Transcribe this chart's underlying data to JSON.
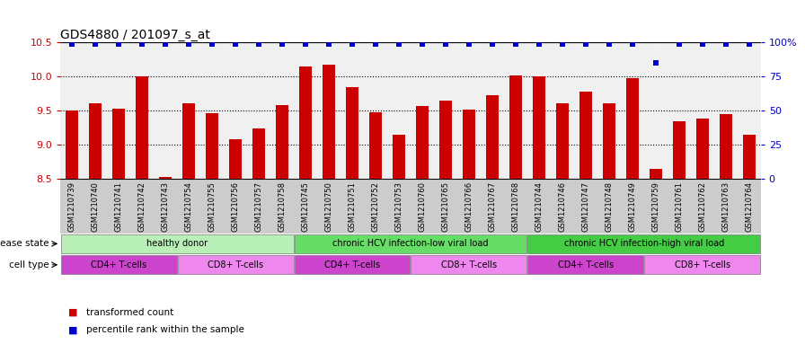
{
  "title": "GDS4880 / 201097_s_at",
  "samples": [
    "GSM1210739",
    "GSM1210740",
    "GSM1210741",
    "GSM1210742",
    "GSM1210743",
    "GSM1210754",
    "GSM1210755",
    "GSM1210756",
    "GSM1210757",
    "GSM1210758",
    "GSM1210745",
    "GSM1210750",
    "GSM1210751",
    "GSM1210752",
    "GSM1210753",
    "GSM1210760",
    "GSM1210765",
    "GSM1210766",
    "GSM1210767",
    "GSM1210768",
    "GSM1210744",
    "GSM1210746",
    "GSM1210747",
    "GSM1210748",
    "GSM1210749",
    "GSM1210759",
    "GSM1210761",
    "GSM1210762",
    "GSM1210763",
    "GSM1210764"
  ],
  "values": [
    9.5,
    9.6,
    9.53,
    10.0,
    8.53,
    9.6,
    9.46,
    9.08,
    9.24,
    9.58,
    10.15,
    10.17,
    9.84,
    9.47,
    9.15,
    9.56,
    9.65,
    9.52,
    9.73,
    10.02,
    10.0,
    9.6,
    9.78,
    9.6,
    9.98,
    8.65,
    9.34,
    9.38,
    9.45,
    9.15
  ],
  "percentile_ranks": [
    99,
    99,
    99,
    99,
    99,
    99,
    99,
    99,
    99,
    99,
    99,
    99,
    99,
    99,
    99,
    99,
    99,
    99,
    99,
    99,
    99,
    99,
    99,
    99,
    99,
    85,
    99,
    99,
    99,
    99
  ],
  "bar_color": "#cc0000",
  "dot_color": "#0000cc",
  "ylim": [
    8.5,
    10.5
  ],
  "y2lim": [
    0,
    100
  ],
  "yticks": [
    8.5,
    9.0,
    9.5,
    10.0,
    10.5
  ],
  "y2ticks": [
    0,
    25,
    50,
    75,
    100
  ],
  "disease_groups": [
    {
      "label": "healthy donor",
      "start": 0,
      "end": 9,
      "color": "#b8f0b8"
    },
    {
      "label": "chronic HCV infection-low viral load",
      "start": 10,
      "end": 19,
      "color": "#66dd66"
    },
    {
      "label": "chronic HCV infection-high viral load",
      "start": 20,
      "end": 29,
      "color": "#44cc44"
    }
  ],
  "cell_type_groups": [
    {
      "label": "CD4+ T-cells",
      "start": 0,
      "end": 4,
      "color": "#cc44cc"
    },
    {
      "label": "CD8+ T-cells",
      "start": 5,
      "end": 9,
      "color": "#ee88ee"
    },
    {
      "label": "CD4+ T-cells",
      "start": 10,
      "end": 14,
      "color": "#cc44cc"
    },
    {
      "label": "CD8+ T-cells",
      "start": 15,
      "end": 19,
      "color": "#ee88ee"
    },
    {
      "label": "CD4+ T-cells",
      "start": 20,
      "end": 24,
      "color": "#cc44cc"
    },
    {
      "label": "CD8+ T-cells",
      "start": 25,
      "end": 29,
      "color": "#ee88ee"
    }
  ],
  "disease_state_label": "disease state",
  "cell_type_label": "cell type",
  "legend_bar_label": "transformed count",
  "legend_dot_label": "percentile rank within the sample",
  "tick_bg_color": "#cccccc",
  "plot_bg_color": "#f0f0f0"
}
